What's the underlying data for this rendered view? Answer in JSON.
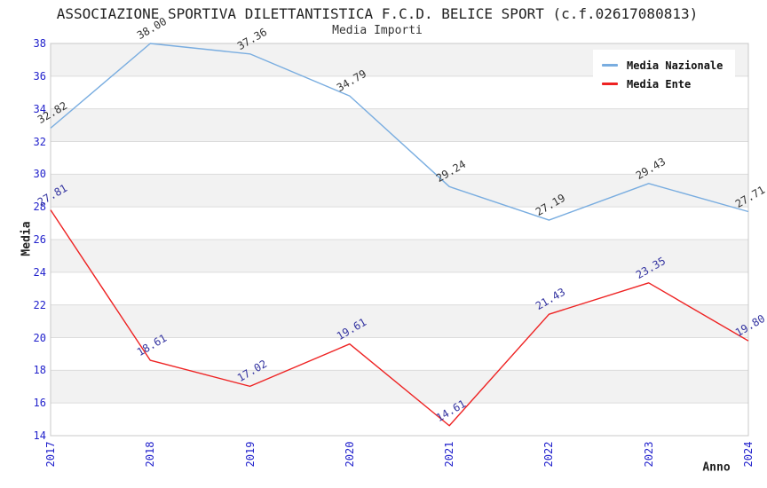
{
  "title": "ASSOCIAZIONE SPORTIVA DILETTANTISTICA F.C.D. BELICE SPORT (c.f.02617080813)",
  "subtitle": "Media Importi",
  "axes": {
    "x_label": "Anno",
    "y_label": "Media"
  },
  "legend": {
    "position": "top-right",
    "items": [
      {
        "label": "Media Nazionale",
        "color": "#79ade0"
      },
      {
        "label": "Media Ente",
        "color": "#ee2222"
      }
    ]
  },
  "colors": {
    "band_gray": "#f2f2f2",
    "gridline": "#dcdcdc",
    "plot_border": "#c8c8c8",
    "tick_label": "#2222cc",
    "national_line": "#79ade0",
    "national_point_label": "#333333",
    "ente_line": "#ee2222",
    "ente_point_label": "#3333a0"
  },
  "chart_data": {
    "type": "line",
    "title": "ASSOCIAZIONE SPORTIVA DILETTANTISTICA F.C.D. BELICE SPORT (c.f.02617080813)",
    "subtitle": "Media Importi",
    "xlabel": "Anno",
    "ylabel": "Media",
    "categories": [
      "2017",
      "2018",
      "2019",
      "2020",
      "2021",
      "2022",
      "2023",
      "2024"
    ],
    "series": [
      {
        "name": "Media Nazionale",
        "color": "#79ade0",
        "label_color": "#333333",
        "values": [
          "32.82",
          "38.00",
          "37.36",
          "34.79",
          "29.24",
          "27.19",
          "29.43",
          "27.71"
        ]
      },
      {
        "name": "Media Ente",
        "color": "#ee2222",
        "label_color": "#3333a0",
        "values": [
          "27.81",
          "18.61",
          "17.02",
          "19.61",
          "14.61",
          "21.43",
          "23.35",
          "19.80"
        ]
      }
    ],
    "ylim": [
      14,
      38
    ],
    "ytick_step": 2,
    "grid": true,
    "alternating_bands": true,
    "legend_position": "top-right"
  }
}
